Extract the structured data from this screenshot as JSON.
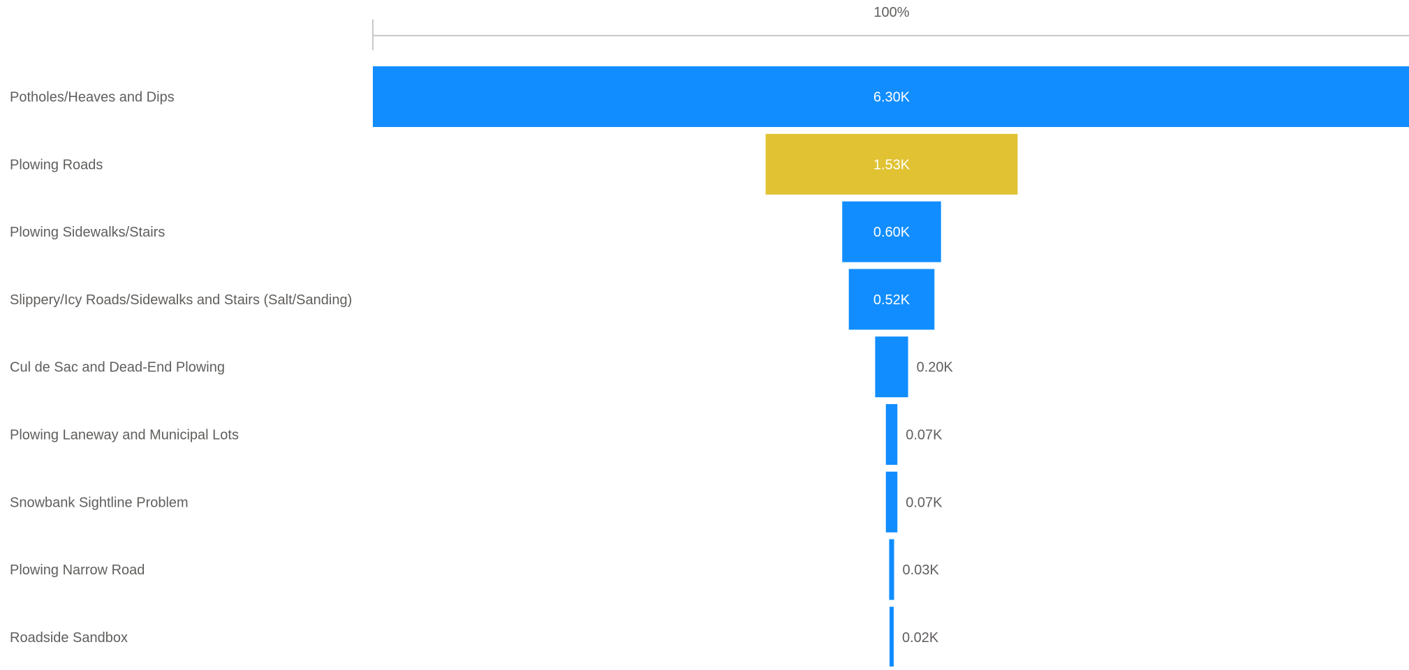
{
  "chart_data": {
    "type": "funnel",
    "top_percent_label": "100%",
    "categories": [
      "Potholes/Heaves and Dips",
      "Plowing Roads",
      "Plowing Sidewalks/Stairs",
      "Slippery/Icy Roads/Sidewalks and Stairs (Salt/Sanding)",
      "Cul de Sac and Dead-End Plowing",
      "Plowing Laneway and Municipal Lots",
      "Snowbank Sightline Problem",
      "Plowing Narrow Road",
      "Roadside Sandbox"
    ],
    "values": [
      6300,
      1530,
      600,
      520,
      200,
      70,
      70,
      30,
      20
    ],
    "value_labels": [
      "6.30K",
      "1.53K",
      "0.60K",
      "0.52K",
      "0.20K",
      "0.07K",
      "0.07K",
      "0.03K",
      "0.02K"
    ],
    "highlighted_index": 1,
    "colors": {
      "bar": "#118DFF",
      "highlight": "#E0C232",
      "category_text": "#605E5C",
      "label_inside": "#FFFFFF",
      "label_outside": "#605E5C",
      "axis": "#C8C8C8"
    }
  }
}
